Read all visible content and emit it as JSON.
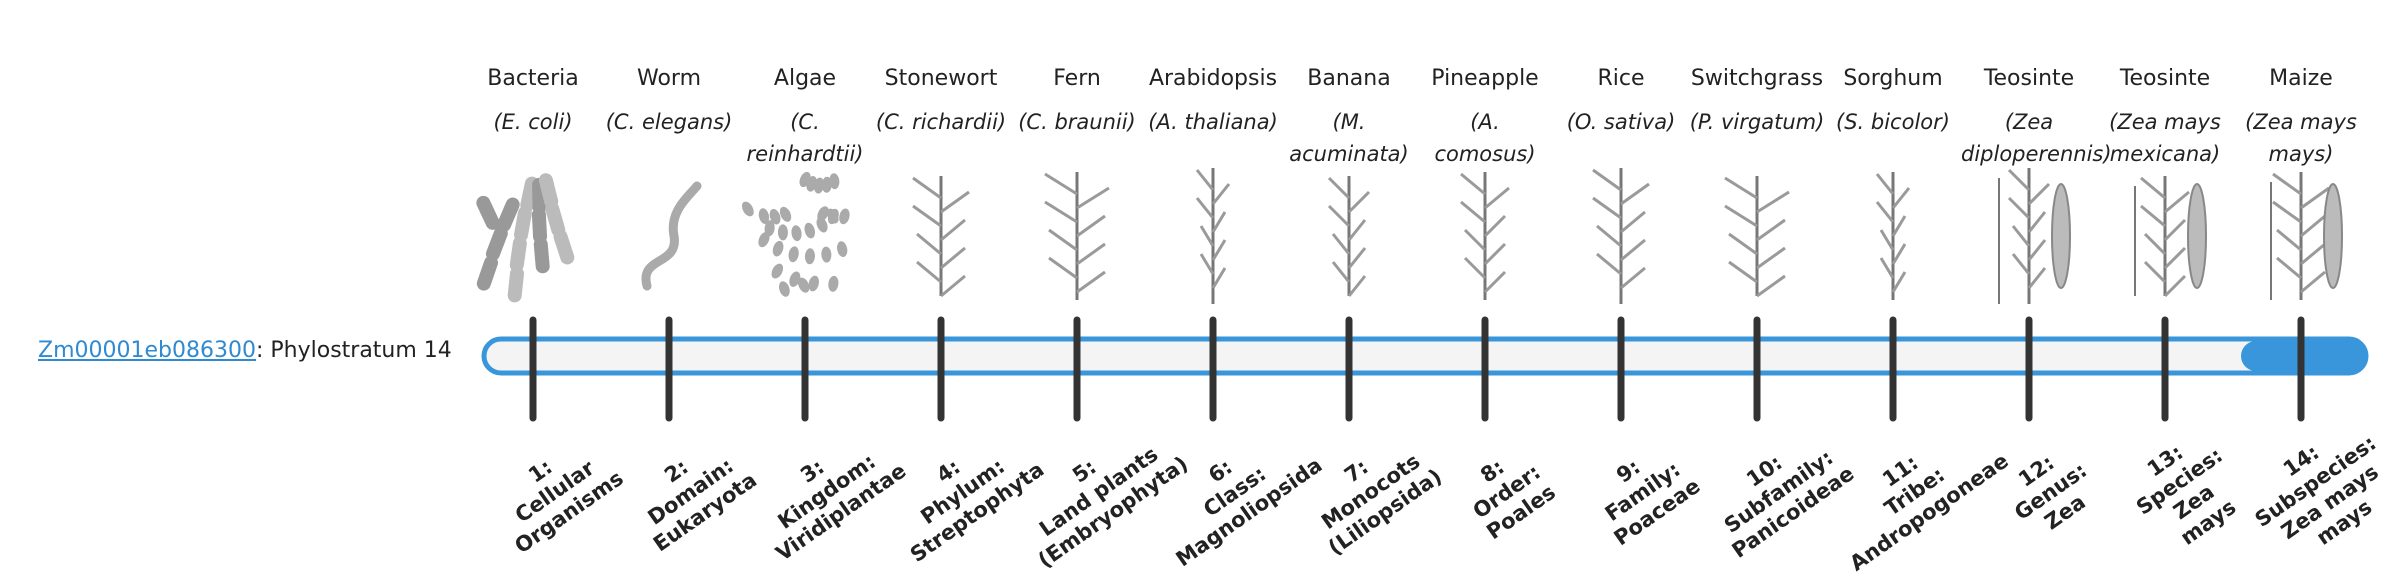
{
  "gene": {
    "id": "Zm00001eb086300",
    "suffix": ": Phylostratum 14"
  },
  "organisms": [
    {
      "name": "Bacteria",
      "species": "(E. coli)"
    },
    {
      "name": "Worm",
      "species": "(C. elegans)"
    },
    {
      "name": "Algae",
      "species": "(C. reinhardtii)"
    },
    {
      "name": "Stonewort",
      "species": "(C. richardii)"
    },
    {
      "name": "Fern",
      "species": "(C. braunii)"
    },
    {
      "name": "Arabidopsis",
      "species": "(A. thaliana)"
    },
    {
      "name": "Banana",
      "species": "(M. acuminata)"
    },
    {
      "name": "Pineapple",
      "species": "(A. comosus)"
    },
    {
      "name": "Rice",
      "species": "(O. sativa)"
    },
    {
      "name": "Switchgrass",
      "species": "(P. virgatum)"
    },
    {
      "name": "Sorghum",
      "species": "(S. bicolor)"
    },
    {
      "name": "Teosinte",
      "species": "(Zea diploperennis)"
    },
    {
      "name": "Teosinte",
      "species": "(Zea mays mexicana)"
    },
    {
      "name": "Maize",
      "species": "(Zea mays mays)"
    }
  ],
  "strata": [
    [
      "1:",
      "Cellular",
      "Organisms"
    ],
    [
      "2:",
      "Domain:",
      "Eukaryota"
    ],
    [
      "3:",
      "Kingdom:",
      "Viridiplantae"
    ],
    [
      "4:",
      "Phylum:",
      "Streptophyta"
    ],
    [
      "5:",
      "Land plants",
      "(Embryophyta)"
    ],
    [
      "6:",
      "Class:",
      "Magnoliopsida"
    ],
    [
      "7:",
      "Monocots",
      "(Liliopsida)"
    ],
    [
      "8:",
      "Order:",
      "Poales"
    ],
    [
      "9:",
      "Family:",
      "Poaceae"
    ],
    [
      "10:",
      "Subfamily:",
      "Panicoideae"
    ],
    [
      "11:",
      "Tribe:",
      "Andropogoneae"
    ],
    [
      "12:",
      "Genus:",
      "Zea"
    ],
    [
      "13:",
      "Species:",
      "Zea",
      "mays"
    ],
    [
      "14:",
      "Subspecies:",
      "Zea mays",
      "mays"
    ]
  ]
}
